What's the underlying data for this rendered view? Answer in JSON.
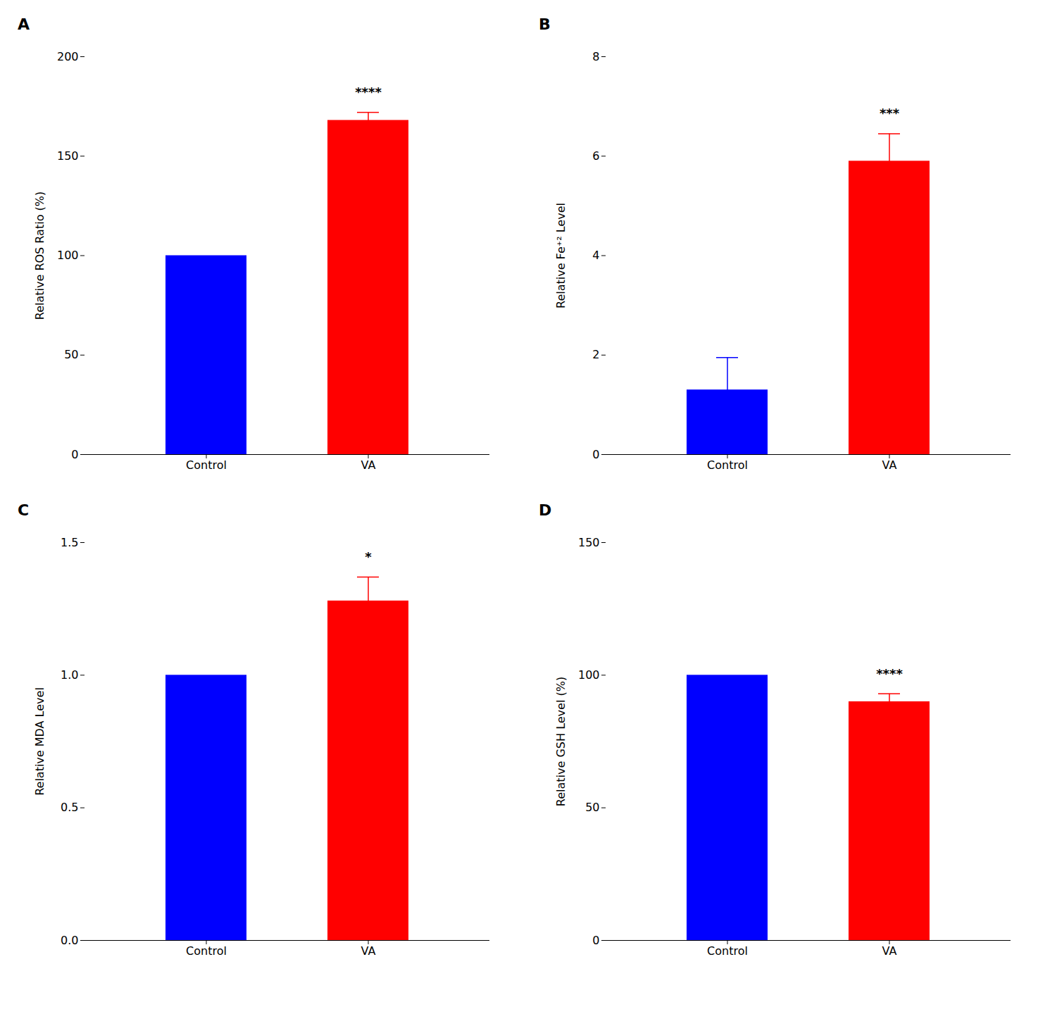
{
  "chart_data": [
    {
      "type": "bar",
      "title": "A",
      "ylabel": "Relative ROS Ratio (%)",
      "categories": [
        "Control",
        "VA"
      ],
      "values": [
        100,
        168
      ],
      "errors": [
        0,
        4
      ],
      "colors": [
        "#0000FF",
        "#FF0000"
      ],
      "ylim": [
        0,
        200
      ],
      "yticks": [
        0,
        50,
        100,
        150,
        200
      ],
      "annotations": [
        {
          "text": "****",
          "x": "VA"
        }
      ]
    },
    {
      "type": "bar",
      "title": "B",
      "ylabel": "Relative Fe⁺² Level",
      "categories": [
        "Control",
        "VA"
      ],
      "values": [
        1.3,
        5.9
      ],
      "errors": [
        0.65,
        0.55
      ],
      "colors": [
        "#0000FF",
        "#FF0000"
      ],
      "ylim": [
        0,
        8
      ],
      "yticks": [
        0,
        2,
        4,
        6,
        8
      ],
      "annotations": [
        {
          "text": "***",
          "x": "VA"
        }
      ]
    },
    {
      "type": "bar",
      "title": "C",
      "ylabel": "Relative MDA Level",
      "categories": [
        "Control",
        "VA"
      ],
      "values": [
        1.0,
        1.28
      ],
      "errors": [
        0,
        0.09
      ],
      "colors": [
        "#0000FF",
        "#FF0000"
      ],
      "ylim": [
        0,
        1.5
      ],
      "yticks": [
        {
          "value": 0,
          "label": "0.0"
        },
        0.5,
        {
          "value": 1,
          "label": "1.0"
        },
        1.5
      ],
      "annotations": [
        {
          "text": "*",
          "x": "VA"
        }
      ]
    },
    {
      "type": "bar",
      "title": "D",
      "ylabel": "Relative GSH Level (%)",
      "categories": [
        "Control",
        "VA"
      ],
      "values": [
        100,
        90
      ],
      "errors": [
        0,
        3
      ],
      "colors": [
        "#0000FF",
        "#FF0000"
      ],
      "ylim": [
        0,
        150
      ],
      "yticks": [
        0,
        50,
        100,
        150
      ],
      "annotations": [
        {
          "text": "****",
          "x": "VA"
        }
      ]
    }
  ]
}
